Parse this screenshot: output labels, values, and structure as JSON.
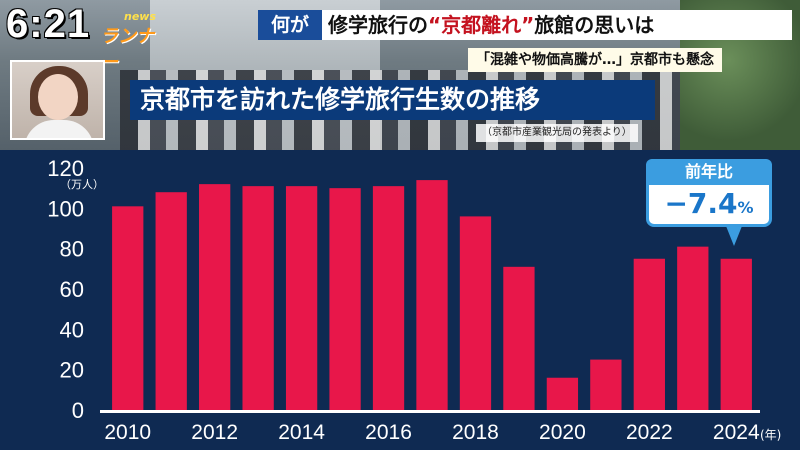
{
  "clock": "6:21",
  "logo": {
    "news": "news",
    "name": "ランナー"
  },
  "banner": {
    "tag": "何が",
    "headline_pre": "修学旅行の",
    "headline_mid": "“京都離れ”",
    "headline_post": "旅館の思いは",
    "sub": "「混雑や物価高騰が…」京都市も懸念"
  },
  "chart_title": "京都市を訪れた修学旅行生数の推移",
  "source": "（京都市産業観光局の発表より）",
  "callout": {
    "label": "前年比",
    "value": "−7.4",
    "unit": "%"
  },
  "colors": {
    "bar": "#e8174a",
    "panel": "#0f2a52",
    "accent": "#3b9de0"
  },
  "chart_data": {
    "type": "bar",
    "title": "京都市を訪れた修学旅行生数の推移",
    "ylabel": "（万人）",
    "xlabel": "",
    "xunit": "(年)",
    "ylim": [
      0,
      120
    ],
    "yticks": [
      0,
      20,
      40,
      60,
      80,
      100,
      120
    ],
    "categories": [
      "2010",
      "2011",
      "2012",
      "2013",
      "2014",
      "2015",
      "2016",
      "2017",
      "2018",
      "2019",
      "2020",
      "2021",
      "2022",
      "2023",
      "2024"
    ],
    "xtick_labels": [
      "2010",
      "2012",
      "2014",
      "2016",
      "2018",
      "2020",
      "2022",
      "2024"
    ],
    "values": [
      101,
      108,
      112,
      111,
      111,
      110,
      111,
      114,
      96,
      71,
      16,
      25,
      75,
      81,
      75
    ],
    "grid": false
  }
}
